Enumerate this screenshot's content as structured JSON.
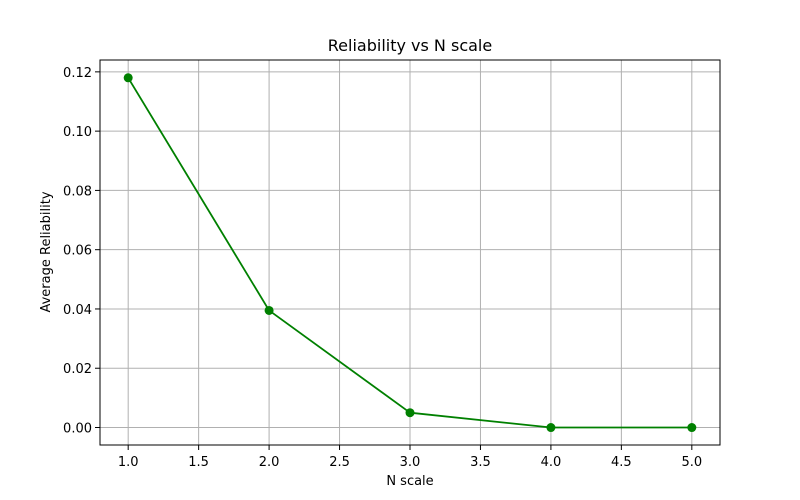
{
  "chart_data": {
    "type": "line",
    "title": "Reliability vs N scale",
    "xlabel": "N scale",
    "ylabel": "Average Reliability",
    "x": [
      1.0,
      2.0,
      3.0,
      4.0,
      5.0
    ],
    "series": [
      {
        "values": [
          0.118,
          0.0395,
          0.005,
          0.0,
          0.0
        ],
        "color": "#008000",
        "marker": "circle"
      }
    ],
    "xlim": [
      0.8,
      5.2
    ],
    "ylim": [
      -0.0059,
      0.124
    ],
    "xticks": [
      1.0,
      1.5,
      2.0,
      2.5,
      3.0,
      3.5,
      4.0,
      4.5,
      5.0
    ],
    "xtick_labels": [
      "1.0",
      "1.5",
      "2.0",
      "2.5",
      "3.0",
      "3.5",
      "4.0",
      "4.5",
      "5.0"
    ],
    "yticks": [
      0.0,
      0.02,
      0.04,
      0.06,
      0.08,
      0.1,
      0.12
    ],
    "ytick_labels": [
      "0.00",
      "0.02",
      "0.04",
      "0.06",
      "0.08",
      "0.10",
      "0.12"
    ],
    "grid": true,
    "legend": "none"
  }
}
